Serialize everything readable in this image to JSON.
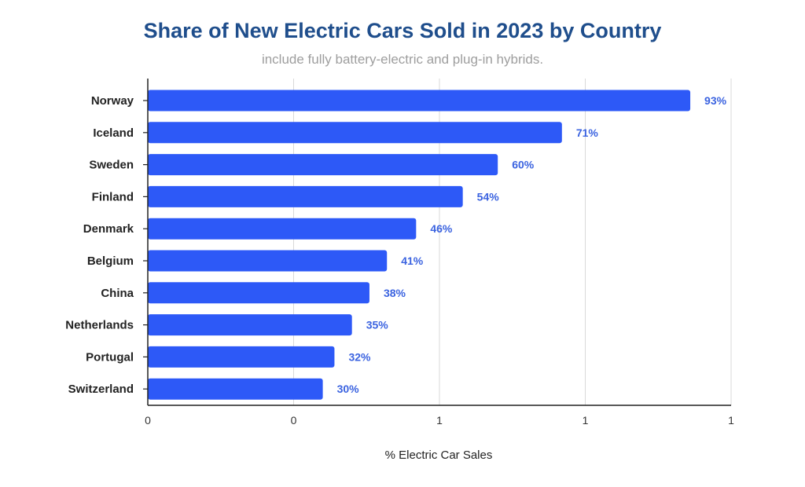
{
  "chart_data": {
    "type": "bar",
    "orientation": "horizontal",
    "title": "Share of New Electric Cars Sold in 2023 by Country",
    "subtitle": "include fully battery-electric and plug-in hybrids.",
    "xlabel": "% Electric Car Sales",
    "ylabel": "",
    "categories": [
      "Norway",
      "Iceland",
      "Sweden",
      "Finland",
      "Denmark",
      "Belgium",
      "China",
      "Netherlands",
      "Portugal",
      "Switzerland"
    ],
    "values": [
      0.93,
      0.71,
      0.6,
      0.54,
      0.46,
      0.41,
      0.38,
      0.35,
      0.32,
      0.3
    ],
    "data_labels": [
      "93%",
      "71%",
      "60%",
      "54%",
      "46%",
      "41%",
      "38%",
      "35%",
      "32%",
      "30%"
    ],
    "xlim": [
      0,
      1
    ],
    "x_ticks": [
      0,
      0.25,
      0.5,
      0.75,
      1
    ],
    "x_tick_labels": [
      "0",
      "0",
      "1",
      "1",
      "1"
    ],
    "grid": true,
    "colors": {
      "bar": "#2d59f7",
      "data_label": "#3b63e0",
      "grid": "#d9d9d9",
      "axis": "#222222",
      "title": "#1f4e8c",
      "subtitle": "#9e9e9e"
    }
  }
}
